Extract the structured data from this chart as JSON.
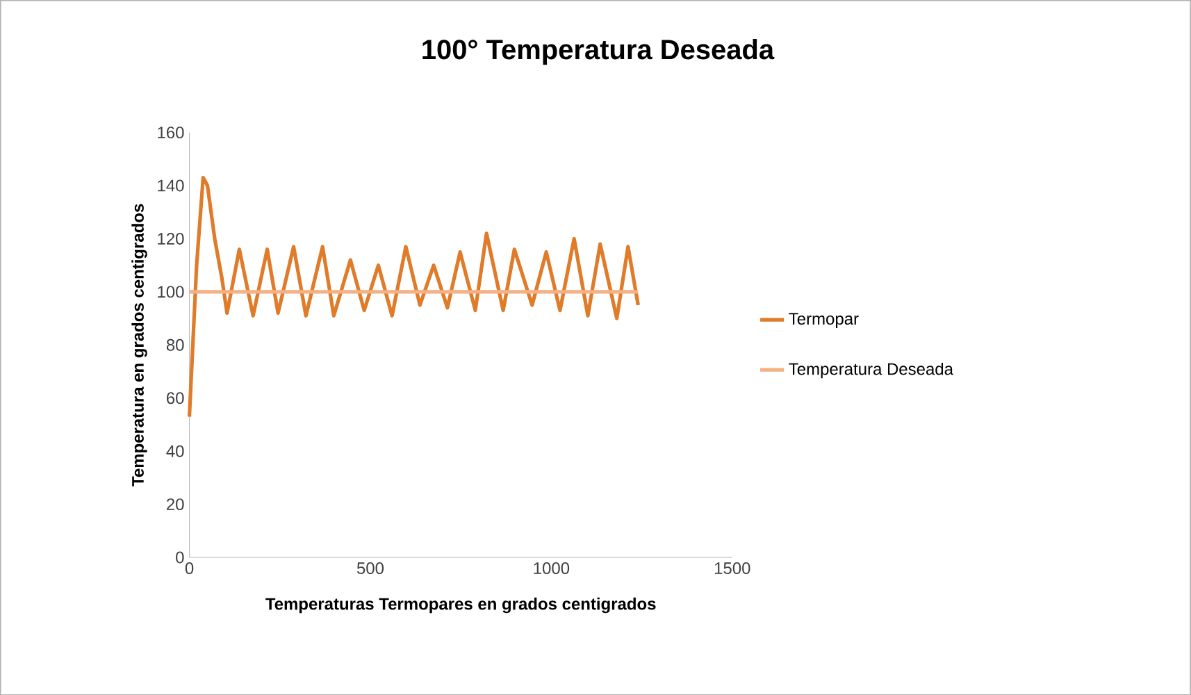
{
  "chart_data": {
    "type": "line",
    "title": "100° Temperatura Deseada",
    "xlabel": "Temperaturas Termopares  en grados centigrados",
    "ylabel": "Temperatura en grados centigrados",
    "xlim": [
      0,
      1500
    ],
    "xticks": [
      0,
      500,
      1000,
      1500
    ],
    "ylim": [
      0,
      160
    ],
    "yticks": [
      0,
      20,
      40,
      60,
      80,
      100,
      120,
      140,
      160
    ],
    "legend": "right",
    "marker": "none",
    "line_style": "solid",
    "series": [
      {
        "name": "Termopar",
        "color": "#e07b2a",
        "x": [
          0,
          20,
          38,
          50,
          70,
          90,
          104,
          138,
          176,
          215,
          245,
          288,
          322,
          368,
          399,
          445,
          483,
          522,
          560,
          598,
          637,
          675,
          713,
          748,
          790,
          821,
          867,
          898,
          947,
          986,
          1024,
          1063,
          1101,
          1135,
          1181,
          1212,
          1240
        ],
        "values": [
          53,
          110,
          143,
          140,
          120,
          105,
          92,
          116,
          91,
          116,
          92,
          117,
          91,
          117,
          91,
          112,
          93,
          110,
          91,
          117,
          95,
          110,
          94,
          115,
          93,
          122,
          93,
          116,
          95,
          115,
          93,
          120,
          91,
          118,
          90,
          117,
          95
        ]
      },
      {
        "name": "Temperatura Deseada",
        "color": "#f4b183",
        "x": [
          0,
          1240
        ],
        "values": [
          100,
          100
        ]
      }
    ]
  }
}
